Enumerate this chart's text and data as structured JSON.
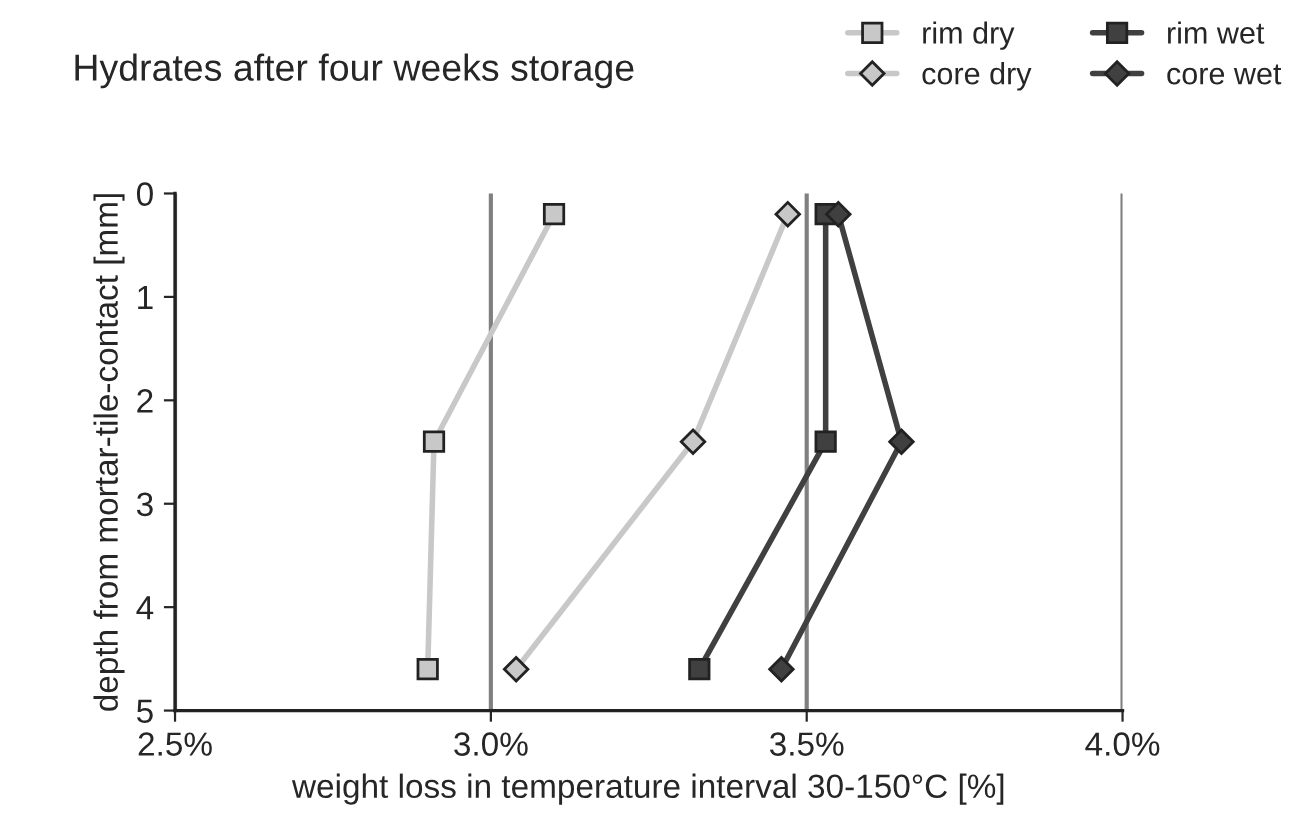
{
  "chart_data": {
    "type": "line",
    "title": "Hydrates after four weeks storage",
    "xlabel": "weight loss in temperature interval 30-150°C [%]",
    "ylabel": "depth from mortar-tile-contact [mm]",
    "xlim": [
      0.025,
      0.04
    ],
    "xticks": [
      {
        "value": 0.025,
        "label": "2.5%"
      },
      {
        "value": 0.03,
        "label": "3.0%"
      },
      {
        "value": 0.035,
        "label": "3.5%"
      },
      {
        "value": 0.04,
        "label": "4.0%"
      }
    ],
    "ylim": [
      5,
      0
    ],
    "yticks": [
      0,
      1,
      2,
      3,
      4,
      5
    ],
    "grid": "x",
    "legend": "top right",
    "series": [
      {
        "name": "rim dry",
        "color": "#c8c8c8",
        "marker": "square",
        "x": [
          0.031,
          0.0291,
          0.029
        ],
        "values": [
          0.2,
          2.4,
          4.6
        ]
      },
      {
        "name": "core dry",
        "color": "#c8c8c8",
        "marker": "diamond",
        "x": [
          0.0347,
          0.0332,
          0.0304
        ],
        "values": [
          0.2,
          2.4,
          4.6
        ]
      },
      {
        "name": "rim wet",
        "color": "#404040",
        "marker": "square",
        "x": [
          0.0353,
          0.0353,
          0.0333
        ],
        "values": [
          0.2,
          2.4,
          4.6
        ]
      },
      {
        "name": "core wet",
        "color": "#404040",
        "marker": "diamond",
        "x": [
          0.0355,
          0.0365,
          0.0346
        ],
        "values": [
          0.2,
          2.4,
          4.6
        ]
      }
    ]
  }
}
